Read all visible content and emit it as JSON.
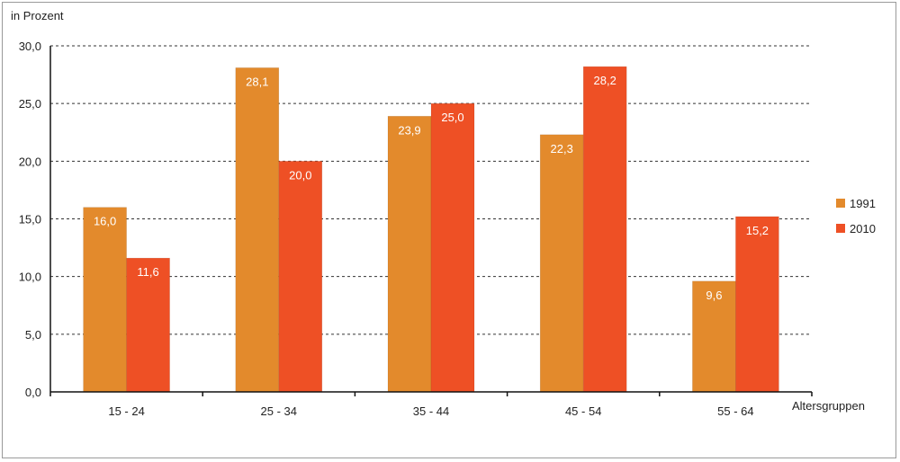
{
  "chart_data": {
    "type": "bar",
    "title": "",
    "ylabel": "in Prozent",
    "xlabel": "Altersgruppen",
    "categories": [
      "15  - 24",
      "25 - 34",
      "35 - 44",
      "45 - 54",
      "55 - 64"
    ],
    "series": [
      {
        "name": "1991",
        "color": "#E38A2C",
        "values": [
          16.0,
          28.1,
          23.9,
          22.3,
          9.6
        ],
        "labels": [
          "16,0",
          "28,1",
          "23,9",
          "22,3",
          "9,6"
        ]
      },
      {
        "name": "2010",
        "color": "#EE5025",
        "values": [
          11.6,
          20.0,
          25.0,
          28.2,
          15.2
        ],
        "labels": [
          "11,6",
          "20,0",
          "25,0",
          "28,2",
          "15,2"
        ]
      }
    ],
    "ylim": [
      0,
      30
    ],
    "yticks": [
      0,
      5,
      10,
      15,
      20,
      25,
      30
    ],
    "ytick_labels": [
      "0,0",
      "5,0",
      "10,0",
      "15,0",
      "20,0",
      "25,0",
      "30,0"
    ],
    "grid": true,
    "legend": "right"
  }
}
